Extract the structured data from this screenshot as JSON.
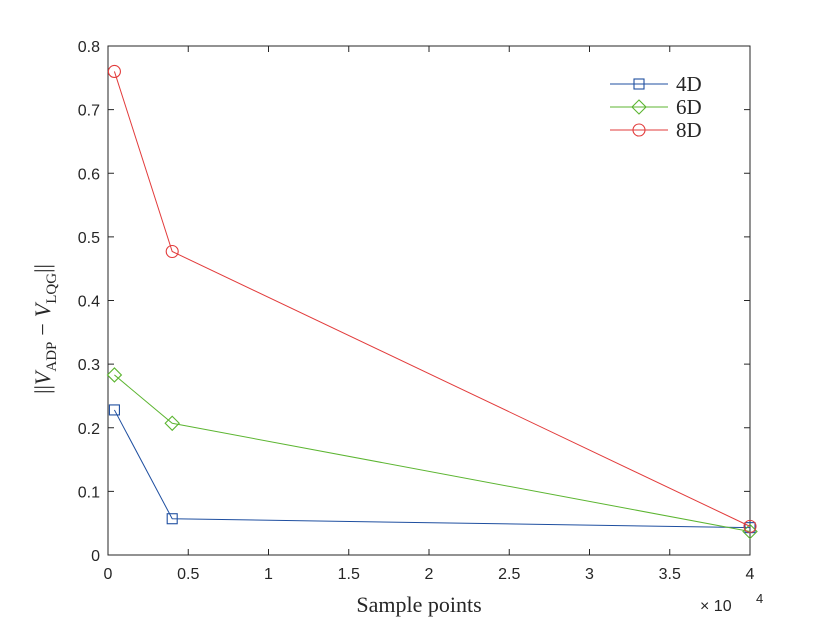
{
  "chart_data": {
    "type": "line",
    "xlabel": "Sample points",
    "ylabel": "||V_ADP − V_LQG||",
    "ylabel_parts": {
      "open": "||",
      "v1": "V",
      "sub1": "ADP",
      "minus": "−",
      "v2": "V",
      "sub2": "LQG",
      "close": "||"
    },
    "x_multiplier": "× 10",
    "x_multiplier_exp": "4",
    "xlim": [
      0,
      40000
    ],
    "ylim": [
      0,
      0.8
    ],
    "xticks": [
      {
        "value": 0,
        "label": "0"
      },
      {
        "value": 5000,
        "label": "0.5"
      },
      {
        "value": 10000,
        "label": "1"
      },
      {
        "value": 15000,
        "label": "1.5"
      },
      {
        "value": 20000,
        "label": "2"
      },
      {
        "value": 25000,
        "label": "2.5"
      },
      {
        "value": 30000,
        "label": "3"
      },
      {
        "value": 35000,
        "label": "3.5"
      },
      {
        "value": 40000,
        "label": "4"
      }
    ],
    "yticks": [
      {
        "value": 0,
        "label": "0"
      },
      {
        "value": 0.1,
        "label": "0.1"
      },
      {
        "value": 0.2,
        "label": "0.2"
      },
      {
        "value": 0.3,
        "label": "0.3"
      },
      {
        "value": 0.4,
        "label": "0.4"
      },
      {
        "value": 0.5,
        "label": "0.5"
      },
      {
        "value": 0.6,
        "label": "0.6"
      },
      {
        "value": 0.7,
        "label": "0.7"
      },
      {
        "value": 0.8,
        "label": "0.8"
      }
    ],
    "grid": false,
    "legend_position": "top-right",
    "series": [
      {
        "name": "4D",
        "color": "#1f4fa0",
        "marker": "square",
        "x": [
          400,
          4000,
          40000
        ],
        "y": [
          0.228,
          0.057,
          0.043
        ]
      },
      {
        "name": "6D",
        "color": "#5cb531",
        "marker": "diamond",
        "x": [
          400,
          4000,
          40000
        ],
        "y": [
          0.283,
          0.207,
          0.037
        ]
      },
      {
        "name": "8D",
        "color": "#e23b3b",
        "marker": "circle",
        "x": [
          400,
          4000,
          40000
        ],
        "y": [
          0.76,
          0.477,
          0.045
        ]
      }
    ]
  }
}
